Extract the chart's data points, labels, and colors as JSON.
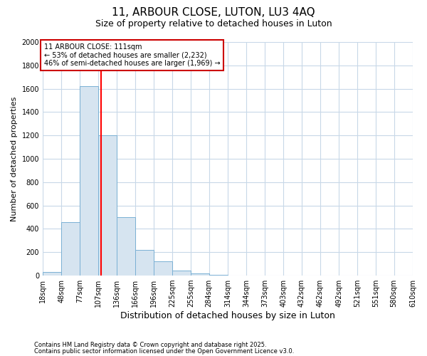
{
  "title1": "11, ARBOUR CLOSE, LUTON, LU3 4AQ",
  "title2": "Size of property relative to detached houses in Luton",
  "xlabel": "Distribution of detached houses by size in Luton",
  "ylabel": "Number of detached properties",
  "bin_edges": [
    18,
    48,
    77,
    107,
    136,
    166,
    196,
    225,
    255,
    284,
    314,
    344,
    373,
    403,
    432,
    462,
    492,
    521,
    551,
    580,
    610
  ],
  "bar_heights": [
    30,
    460,
    1620,
    1200,
    500,
    220,
    120,
    45,
    20,
    5,
    2,
    1,
    0,
    0,
    0,
    0,
    0,
    0,
    0,
    0
  ],
  "bar_color": "#d6e4f0",
  "bar_edge_color": "#7ab0d4",
  "red_line_x": 111,
  "ylim": [
    0,
    2000
  ],
  "yticks": [
    0,
    200,
    400,
    600,
    800,
    1000,
    1200,
    1400,
    1600,
    1800,
    2000
  ],
  "annotation_title": "11 ARBOUR CLOSE: 111sqm",
  "annotation_line1": "← 53% of detached houses are smaller (2,232)",
  "annotation_line2": "46% of semi-detached houses are larger (1,969) →",
  "annotation_box_color": "#ffffff",
  "annotation_box_edge": "#cc0000",
  "footnote1": "Contains HM Land Registry data © Crown copyright and database right 2025.",
  "footnote2": "Contains public sector information licensed under the Open Government Licence v3.0.",
  "background_color": "#ffffff",
  "grid_color": "#c8d8e8",
  "title1_fontsize": 11,
  "title2_fontsize": 9,
  "xlabel_fontsize": 9,
  "ylabel_fontsize": 8,
  "tick_fontsize": 7,
  "annotation_fontsize": 7,
  "footnote_fontsize": 6
}
